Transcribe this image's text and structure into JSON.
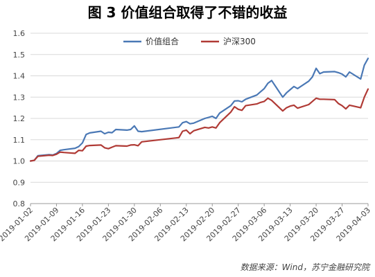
{
  "title": "图 3  价值组合取得了不错的收益",
  "source": "数据来源：Wind，苏宁金融研究院",
  "colors": {
    "portfolio": "#4a78b5",
    "benchmark": "#b03a35",
    "axis": "#999999"
  },
  "chart_data": {
    "type": "line",
    "title": "图 3  价值组合取得了不错的收益",
    "xlabel": "",
    "ylabel": "",
    "ylim": [
      0.8,
      1.6
    ],
    "yticks": [
      "0.8",
      "0.9",
      "1.0",
      "1.1",
      "1.2",
      "1.3",
      "1.4",
      "1.5",
      "1.6"
    ],
    "xticks": [
      "2019-01-02",
      "2019-01-09",
      "2019-01-16",
      "2019-01-23",
      "2019-01-30",
      "2019-02-06",
      "2019-02-13",
      "2019-02-20",
      "2019-02-27",
      "2019-03-06",
      "2019-03-13",
      "2019-03-20",
      "2019-03-27",
      "2019-04-03"
    ],
    "grid": "horizontal",
    "legend": "top-center",
    "series": [
      {
        "name": "价值组合",
        "x": [
          "2019-01-02",
          "2019-01-03",
          "2019-01-04",
          "2019-01-07",
          "2019-01-08",
          "2019-01-09",
          "2019-01-10",
          "2019-01-11",
          "2019-01-14",
          "2019-01-15",
          "2019-01-16",
          "2019-01-17",
          "2019-01-18",
          "2019-01-21",
          "2019-01-22",
          "2019-01-23",
          "2019-01-24",
          "2019-01-25",
          "2019-01-28",
          "2019-01-29",
          "2019-01-30",
          "2019-01-31",
          "2019-02-01",
          "2019-02-11",
          "2019-02-12",
          "2019-02-13",
          "2019-02-14",
          "2019-02-15",
          "2019-02-18",
          "2019-02-19",
          "2019-02-20",
          "2019-02-21",
          "2019-02-22",
          "2019-02-25",
          "2019-02-26",
          "2019-02-27",
          "2019-02-28",
          "2019-03-01",
          "2019-03-04",
          "2019-03-05",
          "2019-03-06",
          "2019-03-07",
          "2019-03-08",
          "2019-03-11",
          "2019-03-12",
          "2019-03-13",
          "2019-03-14",
          "2019-03-15",
          "2019-03-18",
          "2019-03-19",
          "2019-03-20",
          "2019-03-21",
          "2019-03-22",
          "2019-03-25",
          "2019-03-26",
          "2019-03-27",
          "2019-03-28",
          "2019-03-29",
          "2019-04-01",
          "2019-04-02",
          "2019-04-03"
        ],
        "values": [
          1.0,
          1.003,
          1.025,
          1.03,
          1.028,
          1.035,
          1.05,
          1.053,
          1.06,
          1.068,
          1.085,
          1.125,
          1.132,
          1.14,
          1.128,
          1.135,
          1.133,
          1.148,
          1.145,
          1.148,
          1.165,
          1.14,
          1.138,
          1.16,
          1.18,
          1.185,
          1.175,
          1.178,
          1.2,
          1.205,
          1.21,
          1.2,
          1.225,
          1.26,
          1.282,
          1.283,
          1.278,
          1.29,
          1.31,
          1.325,
          1.34,
          1.365,
          1.378,
          1.3,
          1.32,
          1.335,
          1.35,
          1.34,
          1.375,
          1.395,
          1.435,
          1.41,
          1.418,
          1.42,
          1.415,
          1.408,
          1.395,
          1.418,
          1.385,
          1.45,
          1.482
        ]
      },
      {
        "name": "沪深300",
        "x": [
          "2019-01-02",
          "2019-01-03",
          "2019-01-04",
          "2019-01-07",
          "2019-01-08",
          "2019-01-09",
          "2019-01-10",
          "2019-01-11",
          "2019-01-14",
          "2019-01-15",
          "2019-01-16",
          "2019-01-17",
          "2019-01-18",
          "2019-01-21",
          "2019-01-22",
          "2019-01-23",
          "2019-01-24",
          "2019-01-25",
          "2019-01-28",
          "2019-01-29",
          "2019-01-30",
          "2019-01-31",
          "2019-02-01",
          "2019-02-11",
          "2019-02-12",
          "2019-02-13",
          "2019-02-14",
          "2019-02-15",
          "2019-02-18",
          "2019-02-19",
          "2019-02-20",
          "2019-02-21",
          "2019-02-22",
          "2019-02-25",
          "2019-02-26",
          "2019-02-27",
          "2019-02-28",
          "2019-03-01",
          "2019-03-04",
          "2019-03-05",
          "2019-03-06",
          "2019-03-07",
          "2019-03-08",
          "2019-03-11",
          "2019-03-12",
          "2019-03-13",
          "2019-03-14",
          "2019-03-15",
          "2019-03-18",
          "2019-03-19",
          "2019-03-20",
          "2019-03-21",
          "2019-03-22",
          "2019-03-25",
          "2019-03-26",
          "2019-03-27",
          "2019-03-28",
          "2019-03-29",
          "2019-04-01",
          "2019-04-02",
          "2019-04-03"
        ],
        "values": [
          1.0,
          1.003,
          1.022,
          1.027,
          1.026,
          1.032,
          1.042,
          1.04,
          1.036,
          1.05,
          1.048,
          1.07,
          1.073,
          1.075,
          1.062,
          1.058,
          1.065,
          1.072,
          1.07,
          1.075,
          1.076,
          1.072,
          1.09,
          1.11,
          1.14,
          1.145,
          1.128,
          1.142,
          1.158,
          1.155,
          1.16,
          1.155,
          1.18,
          1.23,
          1.255,
          1.243,
          1.238,
          1.26,
          1.268,
          1.275,
          1.28,
          1.295,
          1.285,
          1.235,
          1.25,
          1.258,
          1.262,
          1.248,
          1.265,
          1.28,
          1.295,
          1.29,
          1.29,
          1.288,
          1.27,
          1.26,
          1.245,
          1.262,
          1.25,
          1.3,
          1.338
        ]
      }
    ]
  }
}
